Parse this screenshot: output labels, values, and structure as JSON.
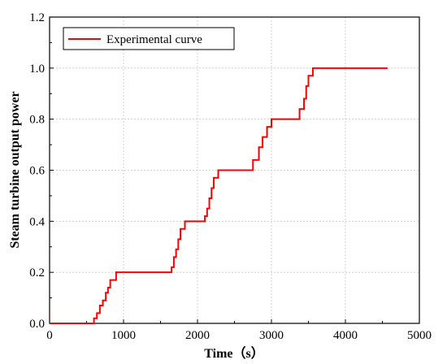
{
  "chart_data": {
    "type": "line",
    "xlabel": "Time（s）",
    "ylabel": "Steam turbine output power",
    "xlim": [
      0,
      5000
    ],
    "ylim": [
      0.0,
      1.2
    ],
    "x_ticks": [
      "0",
      "1000",
      "2000",
      "3000",
      "4000",
      "5000"
    ],
    "y_ticks": [
      "0.0",
      "0.2",
      "0.4",
      "0.6",
      "0.8",
      "1.0",
      "1.2"
    ],
    "grid": true,
    "legend_position": "top-left",
    "series": [
      {
        "name": "Experimental curve",
        "color": "#ff0000",
        "step": true,
        "x": [
          0,
          600,
          640,
          680,
          720,
          760,
          790,
          820,
          900,
          1650,
          1680,
          1710,
          1740,
          1770,
          1830,
          2100,
          2130,
          2160,
          2190,
          2220,
          2280,
          2750,
          2830,
          2880,
          2940,
          3000,
          3380,
          3440,
          3470,
          3500,
          3560,
          4570
        ],
        "y": [
          0.0,
          0.02,
          0.04,
          0.07,
          0.09,
          0.12,
          0.14,
          0.17,
          0.2,
          0.22,
          0.26,
          0.29,
          0.33,
          0.37,
          0.4,
          0.42,
          0.45,
          0.49,
          0.53,
          0.57,
          0.6,
          0.64,
          0.69,
          0.73,
          0.77,
          0.8,
          0.84,
          0.88,
          0.93,
          0.97,
          1.0,
          1.0
        ]
      }
    ]
  }
}
